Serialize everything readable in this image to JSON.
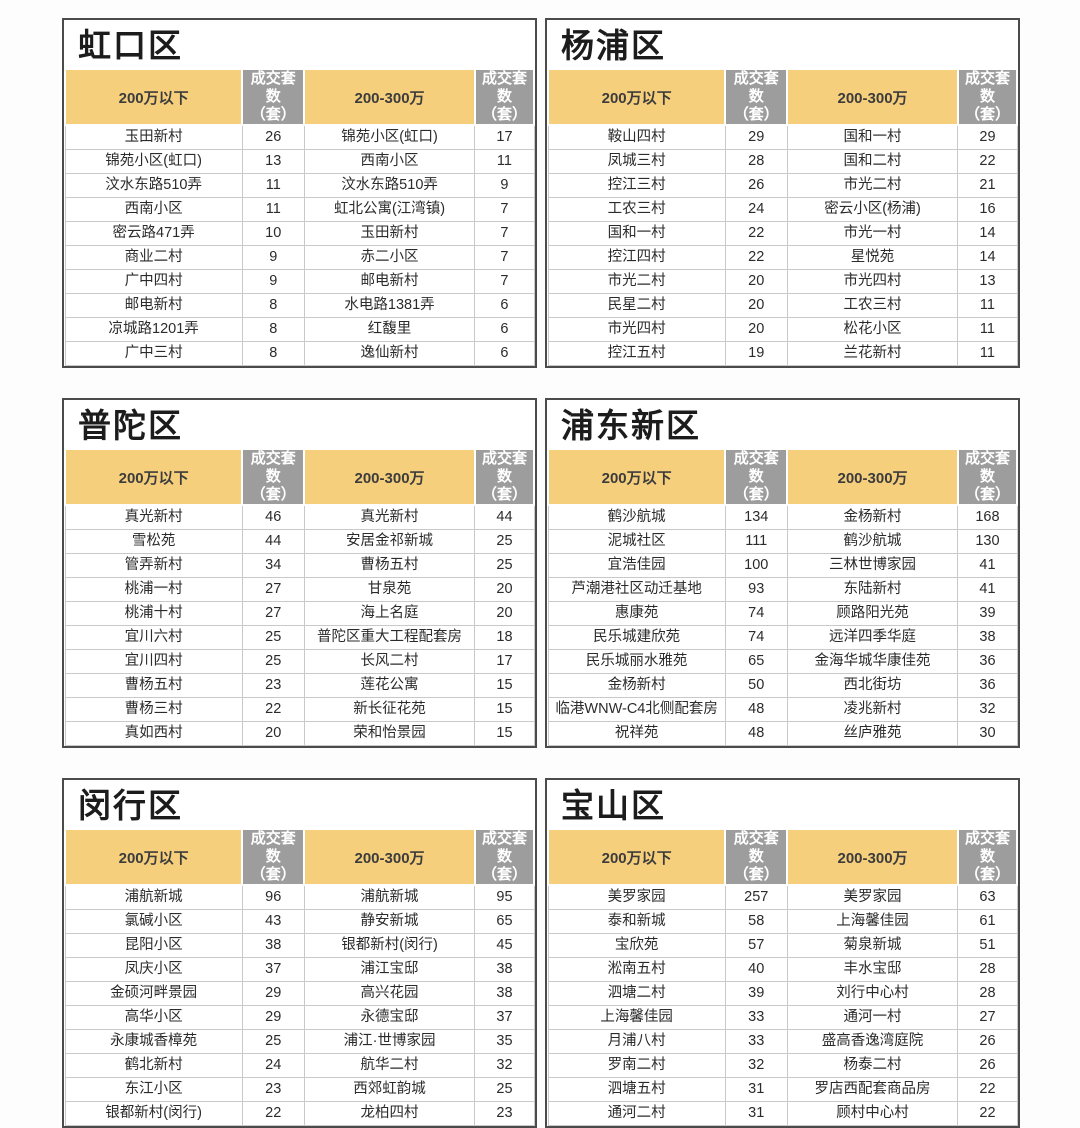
{
  "header_labels": {
    "under200": "200万以下",
    "count_line1": "成交套数",
    "count_line2": "（套）",
    "range200_300": "200-300万"
  },
  "colors": {
    "header_orange": "#f6cf7d",
    "header_gray": "#9d9d9d",
    "panel_border": "#4b4b4b",
    "grid_line": "#c9c9c9"
  },
  "districts": [
    {
      "title": "虹口区",
      "rows": [
        {
          "name1": "玉田新村",
          "count1": "26",
          "name2": "锦苑小区(虹口)",
          "count2": "17"
        },
        {
          "name1": "锦苑小区(虹口)",
          "count1": "13",
          "name2": "西南小区",
          "count2": "11"
        },
        {
          "name1": "汶水东路510弄",
          "count1": "11",
          "name2": "汶水东路510弄",
          "count2": "9"
        },
        {
          "name1": "西南小区",
          "count1": "11",
          "name2": "虹北公寓(江湾镇)",
          "count2": "7"
        },
        {
          "name1": "密云路471弄",
          "count1": "10",
          "name2": "玉田新村",
          "count2": "7"
        },
        {
          "name1": "商业二村",
          "count1": "9",
          "name2": "赤二小区",
          "count2": "7"
        },
        {
          "name1": "广中四村",
          "count1": "9",
          "name2": "邮电新村",
          "count2": "7"
        },
        {
          "name1": "邮电新村",
          "count1": "8",
          "name2": "水电路1381弄",
          "count2": "6"
        },
        {
          "name1": "凉城路1201弄",
          "count1": "8",
          "name2": "红馥里",
          "count2": "6"
        },
        {
          "name1": "广中三村",
          "count1": "8",
          "name2": "逸仙新村",
          "count2": "6"
        }
      ]
    },
    {
      "title": "杨浦区",
      "rows": [
        {
          "name1": "鞍山四村",
          "count1": "29",
          "name2": "国和一村",
          "count2": "29"
        },
        {
          "name1": "凤城三村",
          "count1": "28",
          "name2": "国和二村",
          "count2": "22"
        },
        {
          "name1": "控江三村",
          "count1": "26",
          "name2": "市光二村",
          "count2": "21"
        },
        {
          "name1": "工农三村",
          "count1": "24",
          "name2": "密云小区(杨浦)",
          "count2": "16"
        },
        {
          "name1": "国和一村",
          "count1": "22",
          "name2": "市光一村",
          "count2": "14"
        },
        {
          "name1": "控江四村",
          "count1": "22",
          "name2": "星悦苑",
          "count2": "14"
        },
        {
          "name1": "市光二村",
          "count1": "20",
          "name2": "市光四村",
          "count2": "13"
        },
        {
          "name1": "民星二村",
          "count1": "20",
          "name2": "工农三村",
          "count2": "11"
        },
        {
          "name1": "市光四村",
          "count1": "20",
          "name2": "松花小区",
          "count2": "11"
        },
        {
          "name1": "控江五村",
          "count1": "19",
          "name2": "兰花新村",
          "count2": "11"
        }
      ]
    },
    {
      "title": "普陀区",
      "rows": [
        {
          "name1": "真光新村",
          "count1": "46",
          "name2": "真光新村",
          "count2": "44"
        },
        {
          "name1": "雪松苑",
          "count1": "44",
          "name2": "安居金祁新城",
          "count2": "25"
        },
        {
          "name1": "管弄新村",
          "count1": "34",
          "name2": "曹杨五村",
          "count2": "25"
        },
        {
          "name1": "桃浦一村",
          "count1": "27",
          "name2": "甘泉苑",
          "count2": "20"
        },
        {
          "name1": "桃浦十村",
          "count1": "27",
          "name2": "海上名庭",
          "count2": "20"
        },
        {
          "name1": "宜川六村",
          "count1": "25",
          "name2": "普陀区重大工程配套房",
          "count2": "18"
        },
        {
          "name1": "宜川四村",
          "count1": "25",
          "name2": "长风二村",
          "count2": "17"
        },
        {
          "name1": "曹杨五村",
          "count1": "23",
          "name2": "莲花公寓",
          "count2": "15"
        },
        {
          "name1": "曹杨三村",
          "count1": "22",
          "name2": "新长征花苑",
          "count2": "15"
        },
        {
          "name1": "真如西村",
          "count1": "20",
          "name2": "荣和怡景园",
          "count2": "15"
        }
      ]
    },
    {
      "title": "浦东新区",
      "rows": [
        {
          "name1": "鹤沙航城",
          "count1": "134",
          "name2": "金杨新村",
          "count2": "168"
        },
        {
          "name1": "泥城社区",
          "count1": "111",
          "name2": "鹤沙航城",
          "count2": "130"
        },
        {
          "name1": "宜浩佳园",
          "count1": "100",
          "name2": "三林世博家园",
          "count2": "41"
        },
        {
          "name1": "芦潮港社区动迁基地",
          "count1": "93",
          "name2": "东陆新村",
          "count2": "41"
        },
        {
          "name1": "惠康苑",
          "count1": "74",
          "name2": "顾路阳光苑",
          "count2": "39"
        },
        {
          "name1": "民乐城建欣苑",
          "count1": "74",
          "name2": "远洋四季华庭",
          "count2": "38"
        },
        {
          "name1": "民乐城丽水雅苑",
          "count1": "65",
          "name2": "金海华城华康佳苑",
          "count2": "36"
        },
        {
          "name1": "金杨新村",
          "count1": "50",
          "name2": "西北街坊",
          "count2": "36"
        },
        {
          "name1": "临港WNW-C4北侧配套房",
          "count1": "48",
          "name2": "凌兆新村",
          "count2": "32"
        },
        {
          "name1": "祝祥苑",
          "count1": "48",
          "name2": "丝庐雅苑",
          "count2": "30"
        }
      ]
    },
    {
      "title": "闵行区",
      "rows": [
        {
          "name1": "浦航新城",
          "count1": "96",
          "name2": "浦航新城",
          "count2": "95"
        },
        {
          "name1": "氯碱小区",
          "count1": "43",
          "name2": "静安新城",
          "count2": "65"
        },
        {
          "name1": "昆阳小区",
          "count1": "38",
          "name2": "银都新村(闵行)",
          "count2": "45"
        },
        {
          "name1": "凤庆小区",
          "count1": "37",
          "name2": "浦江宝邸",
          "count2": "38"
        },
        {
          "name1": "金硕河畔景园",
          "count1": "29",
          "name2": "高兴花园",
          "count2": "38"
        },
        {
          "name1": "高华小区",
          "count1": "29",
          "name2": "永德宝邸",
          "count2": "37"
        },
        {
          "name1": "永康城香樟苑",
          "count1": "25",
          "name2": "浦江·世博家园",
          "count2": "35"
        },
        {
          "name1": "鹤北新村",
          "count1": "24",
          "name2": "航华二村",
          "count2": "32"
        },
        {
          "name1": "东江小区",
          "count1": "23",
          "name2": "西郊虹韵城",
          "count2": "25"
        },
        {
          "name1": "银都新村(闵行)",
          "count1": "22",
          "name2": "龙柏四村",
          "count2": "23"
        }
      ]
    },
    {
      "title": "宝山区",
      "rows": [
        {
          "name1": "美罗家园",
          "count1": "257",
          "name2": "美罗家园",
          "count2": "63"
        },
        {
          "name1": "泰和新城",
          "count1": "58",
          "name2": "上海馨佳园",
          "count2": "61"
        },
        {
          "name1": "宝欣苑",
          "count1": "57",
          "name2": "菊泉新城",
          "count2": "51"
        },
        {
          "name1": "淞南五村",
          "count1": "40",
          "name2": "丰水宝邸",
          "count2": "28"
        },
        {
          "name1": "泗塘二村",
          "count1": "39",
          "name2": "刘行中心村",
          "count2": "28"
        },
        {
          "name1": "上海馨佳园",
          "count1": "33",
          "name2": "通河一村",
          "count2": "27"
        },
        {
          "name1": "月浦八村",
          "count1": "33",
          "name2": "盛高香逸湾庭院",
          "count2": "26"
        },
        {
          "name1": "罗南二村",
          "count1": "32",
          "name2": "杨泰二村",
          "count2": "26"
        },
        {
          "name1": "泗塘五村",
          "count1": "31",
          "name2": "罗店西配套商品房",
          "count2": "22"
        },
        {
          "name1": "通河二村",
          "count1": "31",
          "name2": "顾村中心村",
          "count2": "22"
        }
      ]
    }
  ]
}
